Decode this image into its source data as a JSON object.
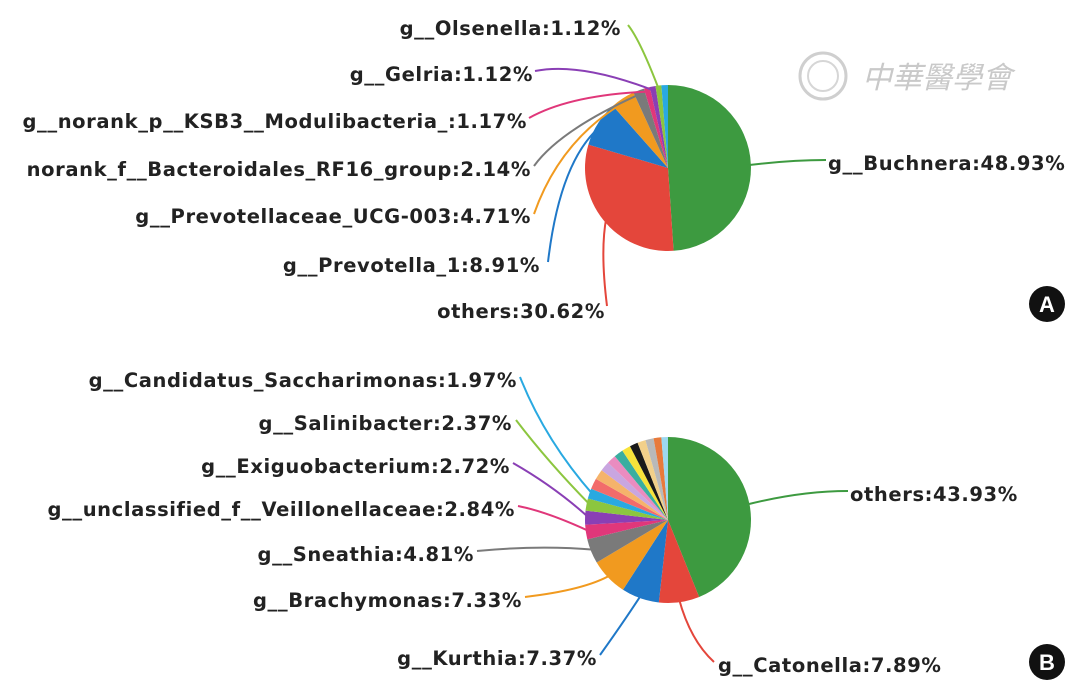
{
  "watermark": "中華醫學會",
  "chart_data": [
    {
      "type": "pie",
      "panel": "A",
      "slices": [
        {
          "label": "g__Buchnera",
          "value": 48.93,
          "display": "g__Buchnera:48.93%",
          "color": "#3d9a40"
        },
        {
          "label": "others",
          "value": 30.62,
          "display": "others:30.62%",
          "color": "#e4463b"
        },
        {
          "label": "g__Prevotella_1",
          "value": 8.91,
          "display": "g__Prevotella_1:8.91%",
          "color": "#1f78c8"
        },
        {
          "label": "g__Prevotellaceae_UCG-003",
          "value": 4.71,
          "display": "g__Prevotellaceae_UCG-003:4.71%",
          "color": "#f19a1f"
        },
        {
          "label": "norank_f__Bacteroidales_RF16_group",
          "value": 2.14,
          "display": "norank_f__Bacteroidales_RF16_group:2.14%",
          "color": "#7a7a7a"
        },
        {
          "label": "g__norank_p__KSB3__Modulibacteria_",
          "value": 1.17,
          "display": "g__norank_p__KSB3__Modulibacteria_:1.17%",
          "color": "#e0377a"
        },
        {
          "label": "g__Gelria",
          "value": 1.12,
          "display": "g__Gelria:1.12%",
          "color": "#8a3fb5"
        },
        {
          "label": "g__Olsenella",
          "value": 1.12,
          "display": "g__Olsenella:1.12%",
          "color": "#8cc63f"
        },
        {
          "label": "",
          "value": 1.28,
          "display": "",
          "color": "#29a9e1"
        }
      ]
    },
    {
      "type": "pie",
      "panel": "B",
      "slices": [
        {
          "label": "others",
          "value": 43.93,
          "display": "others:43.93%",
          "color": "#3d9a40"
        },
        {
          "label": "g__Catonella",
          "value": 7.89,
          "display": "g__Catonella:7.89%",
          "color": "#e4463b"
        },
        {
          "label": "g__Kurthia",
          "value": 7.37,
          "display": "g__Kurthia:7.37%",
          "color": "#1f78c8"
        },
        {
          "label": "g__Brachymonas",
          "value": 7.33,
          "display": "g__Brachymonas:7.33%",
          "color": "#f19a1f"
        },
        {
          "label": "g__Sneathia",
          "value": 4.81,
          "display": "g__Sneathia:4.81%",
          "color": "#7a7a7a"
        },
        {
          "label": "g__unclassified_f__Veillonellaceae",
          "value": 2.84,
          "display": "g__unclassified_f__Veillonellaceae:2.84%",
          "color": "#e0377a"
        },
        {
          "label": "g__Exiguobacterium",
          "value": 2.72,
          "display": "g__Exiguobacterium:2.72%",
          "color": "#8a3fb5"
        },
        {
          "label": "g__Salinibacter",
          "value": 2.37,
          "display": "g__Salinibacter:2.37%",
          "color": "#8cc63f"
        },
        {
          "label": "g__Candidatus_Saccharimonas",
          "value": 1.97,
          "display": "g__Candidatus_Saccharimonas:1.97%",
          "color": "#29a9e1"
        },
        {
          "label": "",
          "value": 2.1,
          "display": "",
          "color": "#f26b6b"
        },
        {
          "label": "",
          "value": 2.0,
          "display": "",
          "color": "#f5b36b"
        },
        {
          "label": "",
          "value": 1.9,
          "display": "",
          "color": "#c9a6e0"
        },
        {
          "label": "",
          "value": 1.8,
          "display": "",
          "color": "#ea8cc0"
        },
        {
          "label": "",
          "value": 1.8,
          "display": "",
          "color": "#3aaea0"
        },
        {
          "label": "",
          "value": 1.7,
          "display": "",
          "color": "#f7e33a"
        },
        {
          "label": "",
          "value": 1.6,
          "display": "",
          "color": "#1a1a1a"
        },
        {
          "label": "",
          "value": 1.6,
          "display": "",
          "color": "#f2d08a"
        },
        {
          "label": "",
          "value": 1.6,
          "display": "",
          "color": "#b9b9b9"
        },
        {
          "label": "",
          "value": 1.5,
          "display": "",
          "color": "#e87a3b"
        },
        {
          "label": "",
          "value": 1.28,
          "display": "",
          "color": "#9dd8f0"
        }
      ]
    }
  ]
}
